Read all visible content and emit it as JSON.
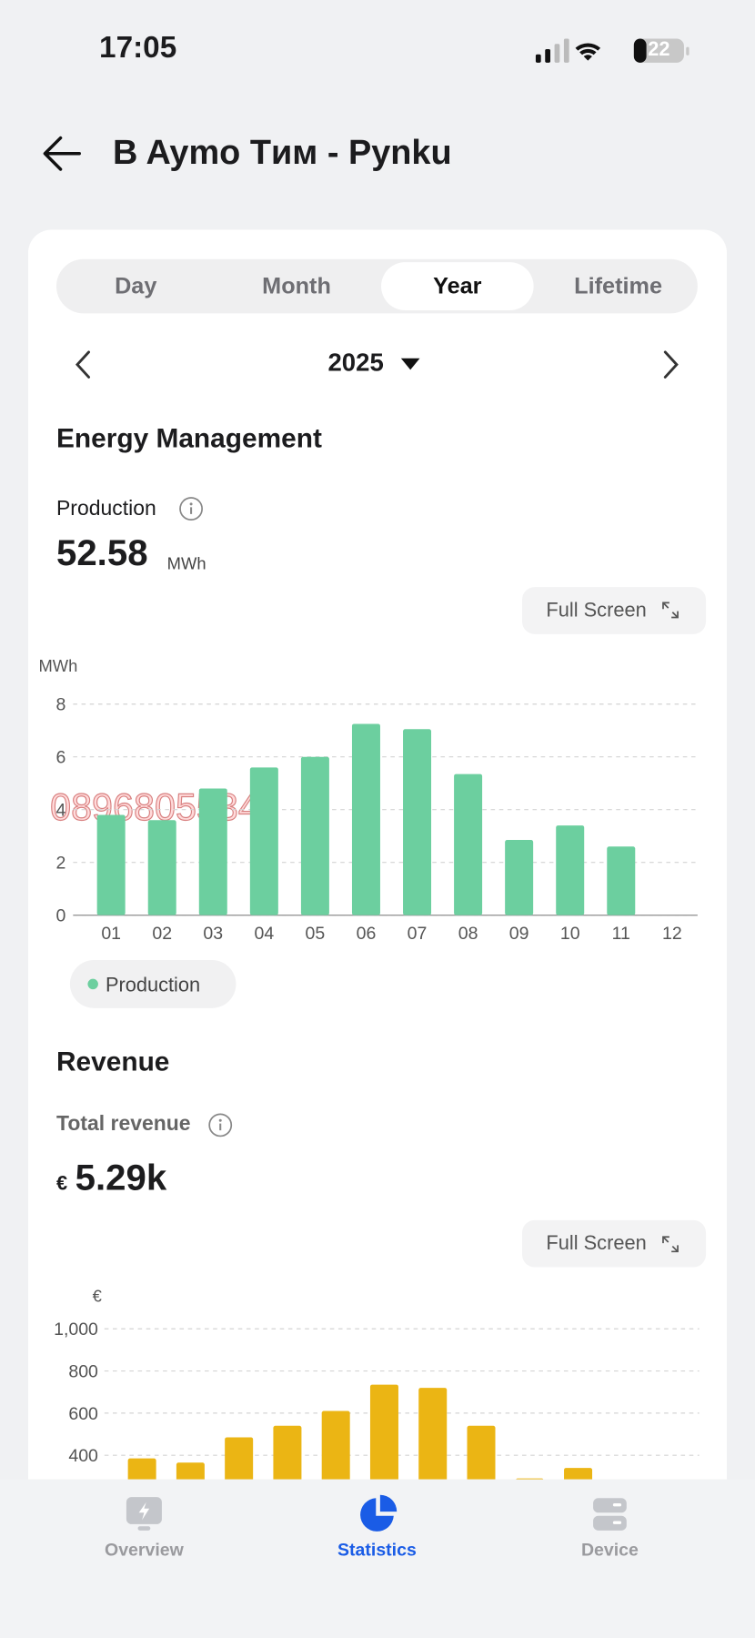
{
  "status_bar": {
    "time": "17:05",
    "battery": "22"
  },
  "header": {
    "title": "B Aymo Tим - Pynku"
  },
  "tabs": [
    "Day",
    "Month",
    "Year",
    "Lifetime"
  ],
  "active_tab": 2,
  "period": "2025",
  "energy": {
    "title": "Energy Management",
    "production_label": "Production",
    "production_value": "52.58",
    "production_unit": "MWh",
    "full_screen": "Full Screen"
  },
  "revenue": {
    "title": "Revenue",
    "total_label": "Total revenue",
    "currency": "€",
    "total_value": "5.29k",
    "full_screen": "Full Screen"
  },
  "watermark": "0896805534",
  "chart_data": [
    {
      "type": "bar",
      "y_label": "MWh",
      "categories": [
        "01",
        "02",
        "03",
        "04",
        "05",
        "06",
        "07",
        "08",
        "09",
        "10",
        "11",
        "12"
      ],
      "series": [
        {
          "name": "Production",
          "color": "#6ccf9f",
          "values": [
            3.8,
            3.6,
            4.8,
            5.6,
            6.0,
            7.25,
            7.05,
            5.35,
            2.85,
            3.4,
            2.6,
            null
          ]
        }
      ],
      "ylim": [
        0,
        8
      ],
      "yticks": [
        0,
        2,
        4,
        6,
        8
      ],
      "grid": true
    },
    {
      "type": "bar",
      "y_label": "€",
      "series": [
        {
          "color": "#ebb514",
          "values": [
            385,
            365,
            485,
            540,
            610,
            735,
            720,
            540,
            290,
            340,
            null,
            null
          ]
        }
      ],
      "ylim": [
        0,
        1000
      ],
      "yticks": [
        {
          "value": 400,
          "label": "400"
        },
        {
          "value": 600,
          "label": "600"
        },
        {
          "value": 800,
          "label": "800"
        },
        {
          "value": 1000,
          "label": "1,000"
        }
      ],
      "grid": true
    }
  ]
}
